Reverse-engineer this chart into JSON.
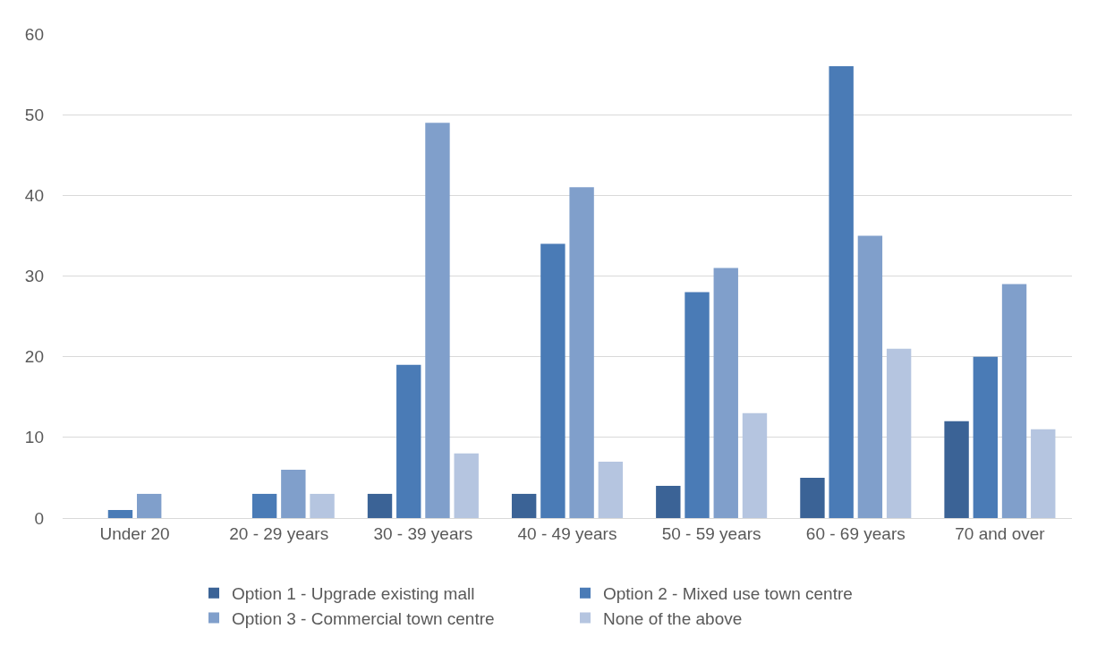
{
  "chart_data": {
    "type": "bar",
    "categories": [
      "Under 20",
      "20 - 29 years",
      "30 - 39 years",
      "40 - 49 years",
      "50 - 59 years",
      "60 - 69 years",
      "70 and over"
    ],
    "series": [
      {
        "name": "Option 1 - Upgrade existing mall",
        "color": "#3b6396",
        "values": [
          0,
          0,
          3,
          3,
          4,
          5,
          12
        ]
      },
      {
        "name": "Option 2 - Mixed use town centre",
        "color": "#4a7bb6",
        "values": [
          1,
          3,
          19,
          34,
          28,
          56,
          20
        ]
      },
      {
        "name": "Option 3 - Commercial town centre",
        "color": "#809fcb",
        "values": [
          3,
          6,
          49,
          41,
          31,
          35,
          29
        ]
      },
      {
        "name": "None of the above",
        "color": "#b5c5e0",
        "values": [
          0,
          3,
          8,
          7,
          13,
          21,
          11
        ]
      }
    ],
    "ylim": [
      0,
      60
    ],
    "yticks": [
      0,
      10,
      20,
      30,
      40,
      50,
      60
    ],
    "grid": "y",
    "legend": "bottom"
  }
}
